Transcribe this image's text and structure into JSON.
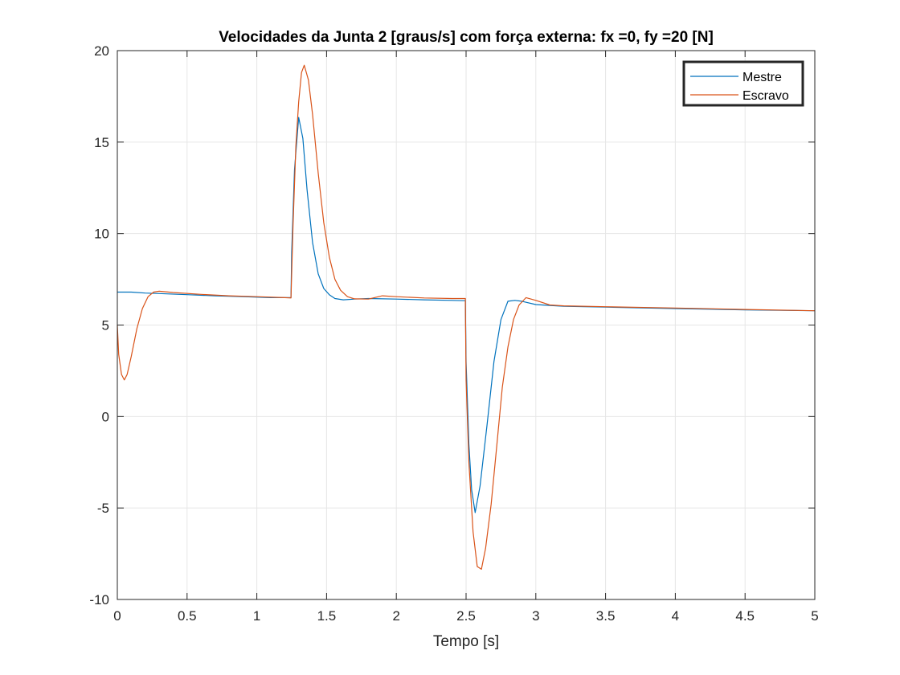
{
  "chart_data": {
    "type": "line",
    "title": "Velocidades da Junta 2 [graus/s] com força externa: fx =0, fy =20 [N]",
    "xlabel": "Tempo [s]",
    "ylabel": "",
    "xlim": [
      0,
      5
    ],
    "ylim": [
      -10,
      20
    ],
    "xticks": [
      0,
      0.5,
      1,
      1.5,
      2,
      2.5,
      3,
      3.5,
      4,
      4.5,
      5
    ],
    "xtick_labels": [
      "0",
      "0.5",
      "1",
      "1.5",
      "2",
      "2.5",
      "3",
      "3.5",
      "4",
      "4.5",
      "5"
    ],
    "yticks": [
      -10,
      -5,
      0,
      5,
      10,
      15,
      20
    ],
    "ytick_labels": [
      "-10",
      "-5",
      "0",
      "5",
      "10",
      "15",
      "20"
    ],
    "grid": true,
    "legend_position": "top-right",
    "series": [
      {
        "name": "Mestre",
        "color": "#0072BD",
        "x": [
          0,
          0.1,
          0.2,
          0.3,
          0.5,
          0.7,
          0.9,
          1.1,
          1.245,
          1.25,
          1.27,
          1.3,
          1.33,
          1.36,
          1.4,
          1.44,
          1.48,
          1.52,
          1.56,
          1.62,
          1.7,
          1.8,
          2.0,
          2.2,
          2.4,
          2.495,
          2.5,
          2.52,
          2.54,
          2.565,
          2.6,
          2.65,
          2.7,
          2.75,
          2.8,
          2.85,
          2.9,
          3.0,
          3.1,
          3.2,
          3.5,
          4.0,
          4.5,
          5.0
        ],
        "y": [
          6.8,
          6.8,
          6.75,
          6.72,
          6.66,
          6.6,
          6.55,
          6.5,
          6.5,
          9.0,
          13.5,
          16.35,
          15.2,
          12.4,
          9.5,
          7.8,
          7.0,
          6.65,
          6.45,
          6.38,
          6.42,
          6.45,
          6.42,
          6.38,
          6.35,
          6.33,
          3.0,
          -1.5,
          -4.0,
          -5.25,
          -3.8,
          -0.5,
          3.0,
          5.3,
          6.3,
          6.35,
          6.3,
          6.12,
          6.07,
          6.03,
          5.98,
          5.9,
          5.83,
          5.78
        ]
      },
      {
        "name": "Escravo",
        "color": "#D95319",
        "x": [
          0,
          0.01,
          0.03,
          0.05,
          0.07,
          0.1,
          0.14,
          0.18,
          0.22,
          0.26,
          0.3,
          0.4,
          0.6,
          0.8,
          1.0,
          1.2,
          1.245,
          1.26,
          1.28,
          1.3,
          1.32,
          1.34,
          1.37,
          1.4,
          1.44,
          1.48,
          1.52,
          1.56,
          1.6,
          1.65,
          1.7,
          1.8,
          1.9,
          2.0,
          2.2,
          2.4,
          2.495,
          2.5,
          2.52,
          2.55,
          2.58,
          2.61,
          2.64,
          2.68,
          2.72,
          2.76,
          2.8,
          2.84,
          2.88,
          2.93,
          3.0,
          3.1,
          3.2,
          3.5,
          4.0,
          4.5,
          5.0
        ],
        "y": [
          5.0,
          3.4,
          2.3,
          2.0,
          2.3,
          3.3,
          4.8,
          5.9,
          6.55,
          6.8,
          6.85,
          6.78,
          6.68,
          6.6,
          6.55,
          6.5,
          6.48,
          10.5,
          14.8,
          17.2,
          18.8,
          19.2,
          18.4,
          16.5,
          13.3,
          10.6,
          8.7,
          7.5,
          6.9,
          6.55,
          6.43,
          6.42,
          6.6,
          6.55,
          6.48,
          6.45,
          6.45,
          2.0,
          -2.5,
          -6.3,
          -8.2,
          -8.35,
          -7.2,
          -4.8,
          -1.6,
          1.6,
          3.8,
          5.3,
          6.1,
          6.5,
          6.35,
          6.1,
          6.05,
          6.0,
          5.93,
          5.85,
          5.78
        ]
      }
    ]
  }
}
